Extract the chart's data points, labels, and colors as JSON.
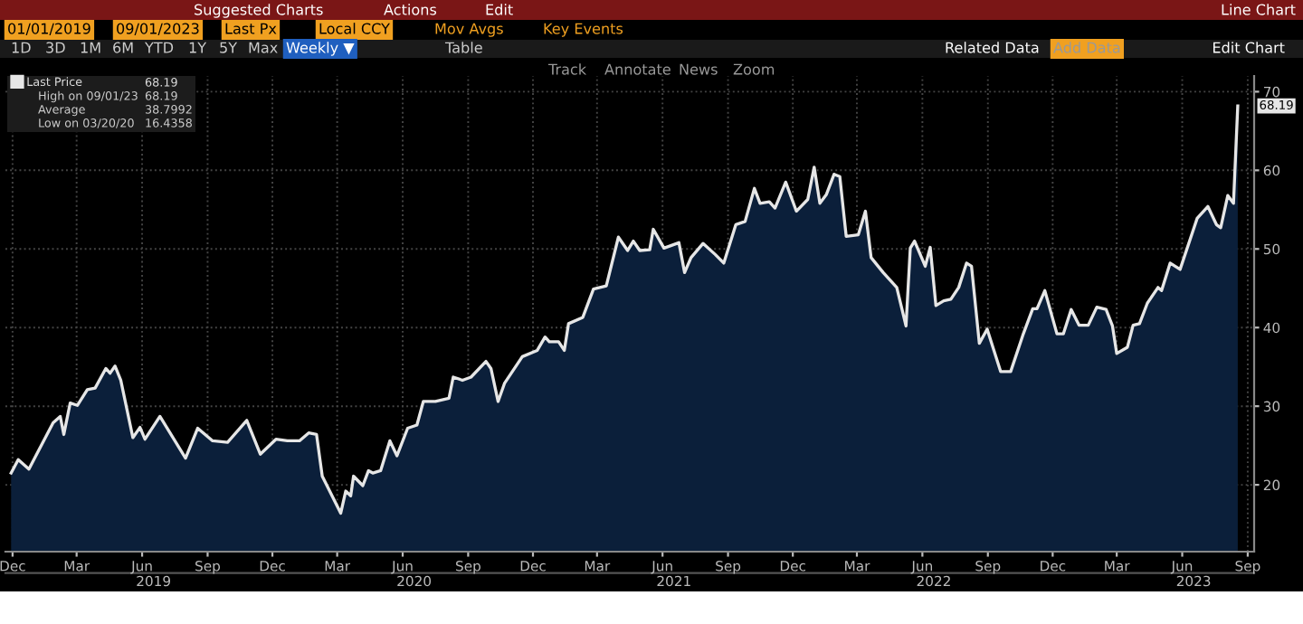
{
  "chart_data": {
    "type": "area",
    "series": [
      {
        "name": "Last Price",
        "color": "#e6e6e6",
        "x": [
          "2018-12-13",
          "2018-12-23",
          "2019-01-07",
          "2019-02-10",
          "2019-02-20",
          "2019-02-25",
          "2019-03-06",
          "2019-03-16",
          "2019-03-30",
          "2019-04-10",
          "2019-04-25",
          "2019-05-01",
          "2019-05-08",
          "2019-05-16",
          "2019-06-02",
          "2019-06-12",
          "2019-06-19",
          "2019-07-10",
          "2019-08-15",
          "2019-09-01",
          "2019-09-22",
          "2019-10-13",
          "2019-11-09",
          "2019-11-28",
          "2019-12-20",
          "2020-01-05",
          "2020-01-22",
          "2020-02-04",
          "2020-02-15",
          "2020-02-23",
          "2020-03-20",
          "2020-03-27",
          "2020-04-03",
          "2020-04-07",
          "2020-04-20",
          "2020-04-28",
          "2020-05-04",
          "2020-05-15",
          "2020-05-28",
          "2020-06-07",
          "2020-06-22",
          "2020-07-05",
          "2020-07-14",
          "2020-07-31",
          "2020-08-19",
          "2020-08-25",
          "2020-09-07",
          "2020-09-19",
          "2020-10-10",
          "2020-10-17",
          "2020-10-27",
          "2020-11-05",
          "2020-11-30",
          "2020-12-21",
          "2021-01-01",
          "2021-01-07",
          "2021-01-20",
          "2021-01-28",
          "2021-02-03",
          "2021-02-23",
          "2021-03-10",
          "2021-03-28",
          "2021-04-14",
          "2021-04-27",
          "2021-05-05",
          "2021-05-14",
          "2021-05-28",
          "2021-06-02",
          "2021-06-17",
          "2021-07-08",
          "2021-07-16",
          "2021-07-25",
          "2021-08-11",
          "2021-08-28",
          "2021-09-09",
          "2021-09-26",
          "2021-10-09",
          "2021-10-22",
          "2021-10-30",
          "2021-11-12",
          "2021-11-20",
          "2021-12-05",
          "2021-12-20",
          "2022-01-05",
          "2022-01-14",
          "2022-01-22",
          "2022-01-31",
          "2022-02-11",
          "2022-02-19",
          "2022-02-28",
          "2022-03-17",
          "2022-03-27",
          "2022-04-04",
          "2022-04-21",
          "2022-05-10",
          "2022-05-23",
          "2022-05-29",
          "2022-06-04",
          "2022-06-19",
          "2022-06-26",
          "2022-07-04",
          "2022-07-15",
          "2022-07-25",
          "2022-08-05",
          "2022-08-16",
          "2022-08-23",
          "2022-09-03",
          "2022-09-14",
          "2022-10-03",
          "2022-10-17",
          "2022-11-03",
          "2022-11-17",
          "2022-11-23",
          "2022-12-04",
          "2022-12-21",
          "2022-12-30",
          "2023-01-10",
          "2023-01-21",
          "2023-02-03",
          "2023-02-15",
          "2023-02-28",
          "2023-03-09",
          "2023-03-15",
          "2023-03-30",
          "2023-04-07",
          "2023-04-16",
          "2023-04-27",
          "2023-05-12",
          "2023-05-17",
          "2023-05-29",
          "2023-06-12",
          "2023-07-06",
          "2023-07-21",
          "2023-08-02",
          "2023-08-08",
          "2023-08-18",
          "2023-08-26",
          "2023-09-01"
        ],
        "values": [
          21.5,
          23.2,
          22.0,
          27.9,
          28.7,
          26.4,
          30.4,
          30.1,
          32.1,
          32.3,
          34.8,
          34.2,
          35.1,
          33.3,
          26.0,
          27.3,
          25.8,
          28.7,
          23.4,
          27.2,
          25.6,
          25.4,
          28.2,
          23.9,
          25.8,
          25.6,
          25.6,
          26.6,
          26.4,
          21.1,
          16.4,
          19.2,
          18.6,
          21.1,
          19.9,
          21.8,
          21.5,
          21.8,
          25.6,
          23.7,
          27.2,
          27.6,
          30.6,
          30.6,
          31.0,
          33.7,
          33.3,
          33.7,
          35.7,
          34.8,
          30.6,
          32.9,
          36.3,
          37.1,
          38.8,
          38.2,
          38.2,
          37.1,
          40.5,
          41.3,
          44.9,
          45.3,
          51.5,
          49.8,
          51.0,
          49.8,
          49.9,
          52.5,
          50.1,
          50.8,
          47.0,
          48.9,
          50.7,
          49.3,
          48.2,
          53.1,
          53.5,
          57.7,
          55.8,
          56.0,
          55.2,
          58.5,
          54.8,
          56.3,
          60.4,
          55.8,
          56.9,
          59.5,
          59.2,
          51.6,
          51.8,
          54.8,
          48.9,
          47.0,
          45.1,
          40.2,
          50.1,
          51.0,
          47.8,
          50.2,
          42.8,
          43.4,
          43.6,
          45.1,
          48.2,
          47.8,
          38.0,
          39.8,
          34.4,
          34.4,
          39.0,
          42.4,
          42.4,
          44.7,
          39.2,
          39.2,
          42.3,
          40.3,
          40.3,
          42.6,
          42.3,
          40.2,
          36.7,
          37.5,
          40.3,
          40.5,
          43.1,
          45.1,
          44.7,
          48.2,
          47.4,
          53.9,
          55.4,
          53.1,
          52.7,
          56.8,
          55.8,
          68.19
        ],
        "value_labels": [
          null,
          null,
          null,
          null,
          null,
          null,
          null,
          null,
          null,
          null,
          null,
          null,
          null,
          null,
          null,
          null,
          null,
          null,
          null,
          null,
          null,
          null,
          null,
          null,
          null,
          null,
          null,
          null,
          null,
          null,
          null,
          null,
          null,
          null,
          null,
          null,
          null,
          null,
          null,
          null,
          null,
          null,
          null,
          null,
          null,
          null,
          null,
          null,
          null,
          null,
          null,
          null,
          null,
          null,
          null,
          null,
          null,
          null,
          null,
          null,
          null,
          null,
          null,
          null,
          null,
          null,
          null,
          null,
          null,
          null,
          null,
          null,
          null,
          null,
          null,
          null,
          null,
          null,
          null,
          null,
          null,
          null,
          null,
          null,
          null,
          null,
          null,
          null,
          null,
          null,
          null,
          null,
          null,
          null,
          null,
          null,
          null,
          null,
          null,
          null,
          null,
          null,
          null,
          null,
          null,
          null,
          null,
          null,
          null,
          null,
          null,
          null,
          null,
          null,
          null,
          null,
          null,
          null,
          null,
          null,
          null,
          null,
          null,
          null,
          null,
          null,
          null,
          null,
          null,
          null,
          null,
          null,
          null,
          null,
          null,
          null,
          null,
          "68.19"
        ]
      }
    ],
    "xlim": [
      "2018-12-05",
      "2023-09-24"
    ],
    "xticks": [
      {
        "value": "2018-12-15",
        "label": "Dec"
      },
      {
        "value": "2019-03-15",
        "label": "Mar"
      },
      {
        "value": "2019-06-15",
        "label": "Jun"
      },
      {
        "value": "2019-09-15",
        "label": "Sep"
      },
      {
        "value": "2019-12-15",
        "label": "Dec"
      },
      {
        "value": "2020-03-15",
        "label": "Mar"
      },
      {
        "value": "2020-06-15",
        "label": "Jun"
      },
      {
        "value": "2020-09-15",
        "label": "Sep"
      },
      {
        "value": "2020-12-15",
        "label": "Dec"
      },
      {
        "value": "2021-03-15",
        "label": "Mar"
      },
      {
        "value": "2021-06-15",
        "label": "Jun"
      },
      {
        "value": "2021-09-15",
        "label": "Sep"
      },
      {
        "value": "2021-12-15",
        "label": "Dec"
      },
      {
        "value": "2022-03-15",
        "label": "Mar"
      },
      {
        "value": "2022-06-15",
        "label": "Jun"
      },
      {
        "value": "2022-09-15",
        "label": "Sep"
      },
      {
        "value": "2022-12-15",
        "label": "Dec"
      },
      {
        "value": "2023-03-15",
        "label": "Mar"
      },
      {
        "value": "2023-06-15",
        "label": "Jun"
      },
      {
        "value": "2023-09-15",
        "label": "Sep"
      }
    ],
    "x2lim": [
      "2018-12-05",
      "2023-09-24"
    ],
    "x2ticks": [
      {
        "value": "2019-07-01",
        "label": "2019"
      },
      {
        "value": "2020-07-01",
        "label": "2020"
      },
      {
        "value": "2021-07-01",
        "label": "2021"
      },
      {
        "value": "2022-07-01",
        "label": "2022"
      },
      {
        "value": "2023-07-01",
        "label": "2023"
      }
    ],
    "ylim": [
      11.5,
      72
    ],
    "yticks": [
      20,
      30,
      40,
      50,
      60,
      70
    ],
    "grid": true,
    "legend": "top left",
    "annotations": [
      "Suggested Charts",
      "Actions",
      "Edit",
      "Line Chart",
      "01/01/2019",
      "09/01/2023",
      "Last Px",
      "Local CCY",
      "Mov Avgs",
      "Key Events",
      "1D",
      "3D",
      "1M",
      "6M",
      "YTD",
      "1Y",
      "5Y",
      "Max",
      "Weekly ▼",
      "Table",
      "Related Data",
      "Add Data",
      "Edit Chart",
      "Track",
      "Annotate",
      "News",
      "Zoom",
      "68.19",
      "High on 09/01/23",
      "68.19",
      "Average",
      "38.7992",
      "Low on 03/20/20",
      "16.4358"
    ]
  }
}
